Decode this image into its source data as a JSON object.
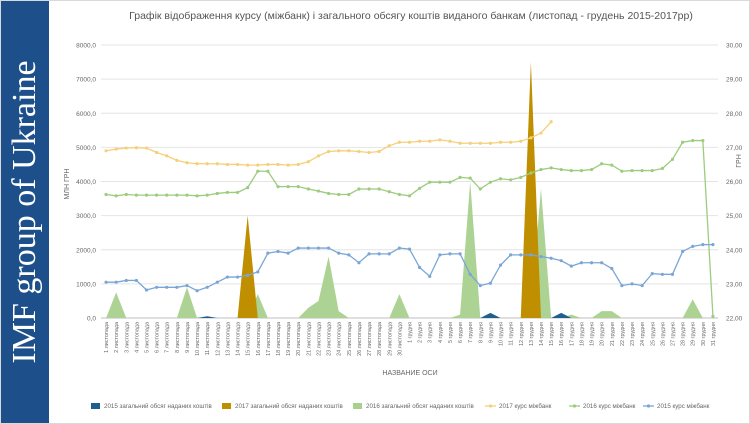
{
  "sidebar": {
    "text": "IMF group of Ukraine"
  },
  "chart_data": {
    "type": "combo",
    "title": "Графік відображення курсу (міжбанк) і загального обсягу коштів виданого банкам (листопад - грудень 2015-2017рр)",
    "xlabel": "НАЗВАНИЕ ОСИ",
    "ylabel": "МЛН ГРН",
    "y2label": "ГРН",
    "ylim": [
      0,
      8000
    ],
    "y2lim": [
      22,
      30
    ],
    "yticks": [
      "0,0",
      "1000,0",
      "2000,0",
      "3000,0",
      "4000,0",
      "5000,0",
      "6000,0",
      "7000,0",
      "8000,0"
    ],
    "y2ticks": [
      "22,00",
      "23,00",
      "24,00",
      "25,00",
      "26,00",
      "27,00",
      "28,00",
      "29,00",
      "30,00"
    ],
    "grid": true,
    "legend_position": "bottom",
    "categories": [
      "1 листопада",
      "2 листопада",
      "3 листопада",
      "4 листопада",
      "5 листопада",
      "6 листопада",
      "7 листопада",
      "8 листопада",
      "9 листопада",
      "10 листопада",
      "11 листопада",
      "12 листопада",
      "13 листопада",
      "14 листопада",
      "15 листопада",
      "16 листопада",
      "17 листопада",
      "18 листопада",
      "19 листопада",
      "20 листопада",
      "21 листопада",
      "22 листопада",
      "23 листопада",
      "24 листопада",
      "25 листопада",
      "26 листопада",
      "27 листопада",
      "28 листопада",
      "29 листопада",
      "30 листопада",
      "1 грудня",
      "2 грудня",
      "3 грудня",
      "4 грудня",
      "5 грудня",
      "6 грудня",
      "7 грудня",
      "8 грудня",
      "9 грудня",
      "10 грудня",
      "11 грудня",
      "12 грудня",
      "13 грудня",
      "14 грудня",
      "15 грудня",
      "16 грудня",
      "17 грудня",
      "18 грудня",
      "19 грудня",
      "20 грудня",
      "21 грудня",
      "22 грудня",
      "23 грудня",
      "24 грудня",
      "25 грудня",
      "26 грудня",
      "27 грудня",
      "28 грудня",
      "29 грудня",
      "30 грудня",
      "31 грудня"
    ],
    "series": [
      {
        "name": "2015 загальний обсяг наданих коштів",
        "type": "area",
        "axis": "left",
        "color": "#1f5f8f",
        "values": [
          0,
          0,
          0,
          0,
          0,
          0,
          0,
          0,
          0,
          0,
          50,
          0,
          0,
          0,
          0,
          0,
          0,
          0,
          0,
          0,
          0,
          0,
          0,
          0,
          0,
          0,
          0,
          0,
          0,
          0,
          0,
          0,
          0,
          0,
          0,
          0,
          0,
          0,
          150,
          0,
          0,
          0,
          0,
          0,
          0,
          150,
          0,
          0,
          0,
          0,
          0,
          0,
          0,
          0,
          0,
          0,
          0,
          0,
          0,
          0,
          0
        ]
      },
      {
        "name": "2017 загальний обсяг наданих коштів",
        "type": "area",
        "axis": "left",
        "color": "#bf8f00",
        "values": [
          0,
          0,
          0,
          0,
          0,
          0,
          0,
          0,
          0,
          0,
          0,
          0,
          0,
          0,
          3000,
          0,
          0,
          0,
          0,
          0,
          0,
          0,
          0,
          0,
          0,
          0,
          0,
          0,
          0,
          0,
          0,
          0,
          0,
          0,
          0,
          0,
          0,
          0,
          0,
          0,
          0,
          0,
          7500,
          0,
          0,
          0,
          0,
          0,
          0,
          0,
          0,
          0,
          0,
          0,
          0,
          0,
          0,
          0,
          0,
          0,
          0
        ]
      },
      {
        "name": "2016 загальний обсяг наданих коштів",
        "type": "area",
        "axis": "left",
        "color": "#a9d18e",
        "values": [
          0,
          750,
          0,
          0,
          0,
          0,
          0,
          0,
          900,
          0,
          0,
          0,
          0,
          0,
          0,
          700,
          0,
          0,
          0,
          0,
          300,
          500,
          1800,
          200,
          0,
          0,
          0,
          0,
          0,
          700,
          0,
          0,
          0,
          0,
          0,
          100,
          4000,
          0,
          0,
          0,
          0,
          0,
          200,
          3800,
          0,
          0,
          100,
          0,
          0,
          200,
          200,
          0,
          0,
          0,
          0,
          0,
          0,
          0,
          550,
          0,
          0
        ]
      },
      {
        "name": "2017 курс міжбанк",
        "type": "line",
        "axis": "right",
        "color": "#f5d07a",
        "values": [
          26.9,
          26.95,
          26.98,
          26.99,
          26.98,
          26.85,
          26.75,
          26.62,
          26.55,
          26.52,
          26.52,
          26.52,
          26.5,
          26.5,
          26.48,
          26.48,
          26.5,
          26.5,
          26.48,
          26.5,
          26.58,
          26.75,
          26.88,
          26.9,
          26.9,
          26.88,
          26.85,
          26.88,
          27.05,
          27.15,
          27.15,
          27.18,
          27.18,
          27.22,
          27.18,
          27.12,
          27.12,
          27.12,
          27.12,
          27.15,
          27.15,
          27.18,
          27.28,
          27.42,
          27.75,
          null,
          null,
          null,
          null,
          null,
          null,
          null,
          null,
          null,
          null,
          null,
          null,
          null,
          null,
          null,
          null
        ]
      },
      {
        "name": "2016 курс міжбанк",
        "type": "line",
        "axis": "right",
        "color": "#9ccc7e",
        "values": [
          25.62,
          25.58,
          25.62,
          25.6,
          25.6,
          25.6,
          25.6,
          25.6,
          25.6,
          25.58,
          25.6,
          25.65,
          25.68,
          25.68,
          25.82,
          26.3,
          26.3,
          25.85,
          25.85,
          25.85,
          25.78,
          25.72,
          25.65,
          25.62,
          25.62,
          25.78,
          25.78,
          25.78,
          25.7,
          25.62,
          25.58,
          25.8,
          25.98,
          25.98,
          25.98,
          26.12,
          26.1,
          25.78,
          25.98,
          26.08,
          26.05,
          26.12,
          26.25,
          26.35,
          26.4,
          26.35,
          26.32,
          26.32,
          26.35,
          26.52,
          26.48,
          26.3,
          26.32,
          26.32,
          26.32,
          26.38,
          26.65,
          27.15,
          27.2,
          27.2,
          22.05
        ]
      },
      {
        "name": "2015 курс міжбанк",
        "type": "line",
        "axis": "right",
        "color": "#7aa6d6",
        "values": [
          23.05,
          23.05,
          23.1,
          23.1,
          22.82,
          22.9,
          22.9,
          22.9,
          22.95,
          22.8,
          22.9,
          23.05,
          23.2,
          23.2,
          23.25,
          23.35,
          23.9,
          23.95,
          23.9,
          24.05,
          24.05,
          24.05,
          24.05,
          23.9,
          23.85,
          23.62,
          23.88,
          23.88,
          23.88,
          24.05,
          24.02,
          23.48,
          23.22,
          23.85,
          23.88,
          23.88,
          23.28,
          22.95,
          23.02,
          23.55,
          23.85,
          23.85,
          23.85,
          23.8,
          23.75,
          23.68,
          23.52,
          23.62,
          23.62,
          23.62,
          23.45,
          22.95,
          23.0,
          22.95,
          23.3,
          23.28,
          23.28,
          23.95,
          24.1,
          24.15,
          24.15
        ]
      }
    ]
  }
}
